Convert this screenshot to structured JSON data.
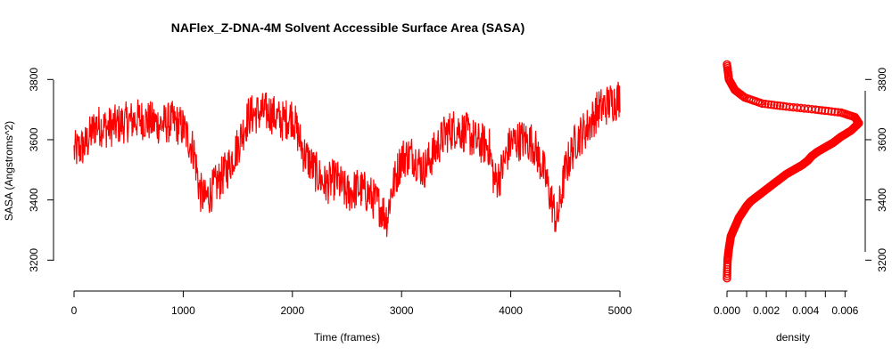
{
  "chart_data": [
    {
      "type": "line",
      "title": "NAFlex_Z-DNA-4M Solvent Accessible Surface Area (SASA)",
      "xlabel": "Time (frames)",
      "ylabel": "SASA (Angstroms^2)",
      "xlim": [
        0,
        5000
      ],
      "ylim": [
        3130,
        3860
      ],
      "x_ticks": [
        0,
        1000,
        2000,
        3000,
        4000,
        5000
      ],
      "y_ticks": [
        3200,
        3400,
        3600,
        3800
      ],
      "color": "#ff0000",
      "series": [
        {
          "x": [
            0,
            100,
            200,
            300,
            400,
            500,
            600,
            700,
            800,
            900,
            1000,
            1100,
            1150,
            1200,
            1300,
            1400,
            1500,
            1600,
            1700,
            1800,
            1900,
            2000,
            2100,
            2200,
            2300,
            2400,
            2500,
            2600,
            2700,
            2800,
            2870,
            2900,
            3000,
            3100,
            3200,
            3300,
            3400,
            3500,
            3600,
            3700,
            3800,
            3850,
            3900,
            4000,
            4100,
            4200,
            4300,
            4400,
            4420,
            4500,
            4600,
            4700,
            4800,
            4900,
            5000
          ],
          "values": [
            3560,
            3580,
            3650,
            3640,
            3650,
            3660,
            3670,
            3660,
            3650,
            3660,
            3640,
            3560,
            3430,
            3400,
            3450,
            3500,
            3580,
            3680,
            3690,
            3690,
            3660,
            3680,
            3560,
            3500,
            3450,
            3470,
            3420,
            3440,
            3420,
            3380,
            3340,
            3420,
            3540,
            3550,
            3500,
            3560,
            3620,
            3640,
            3620,
            3590,
            3580,
            3460,
            3480,
            3590,
            3600,
            3590,
            3500,
            3360,
            3320,
            3500,
            3600,
            3640,
            3700,
            3720,
            3740
          ]
        }
      ]
    },
    {
      "type": "scatter",
      "xlabel": "density",
      "ylabel": "",
      "xlim": [
        0,
        0.0068
      ],
      "ylim": [
        3130,
        3860
      ],
      "x_ticks": [
        "0.000",
        "0.002",
        "0.004",
        "0.006"
      ],
      "x_tick_values": [
        0,
        0.002,
        0.004,
        0.006
      ],
      "y_ticks": [
        3200,
        3400,
        3600,
        3800
      ],
      "color": "#ff0000",
      "series": [
        {
          "x": [
            0,
            3e-05,
            0.0001,
            0.0002,
            0.0004,
            0.0006,
            0.0008,
            0.001,
            0.0012,
            0.0015,
            0.0018,
            0.0022,
            0.0026,
            0.003,
            0.0034,
            0.0038,
            0.0041,
            0.0043,
            0.0046,
            0.005,
            0.0054,
            0.0058,
            0.0063,
            0.0067,
            0.0065,
            0.0058,
            0.0045,
            0.003,
            0.0018,
            0.0009,
            0.0004,
            0.0001,
            0
          ],
          "values": [
            3140,
            3200,
            3240,
            3280,
            3310,
            3340,
            3360,
            3380,
            3395,
            3410,
            3425,
            3445,
            3465,
            3485,
            3500,
            3515,
            3530,
            3545,
            3560,
            3575,
            3590,
            3610,
            3630,
            3655,
            3675,
            3690,
            3700,
            3710,
            3720,
            3740,
            3765,
            3800,
            3850
          ]
        }
      ]
    }
  ]
}
